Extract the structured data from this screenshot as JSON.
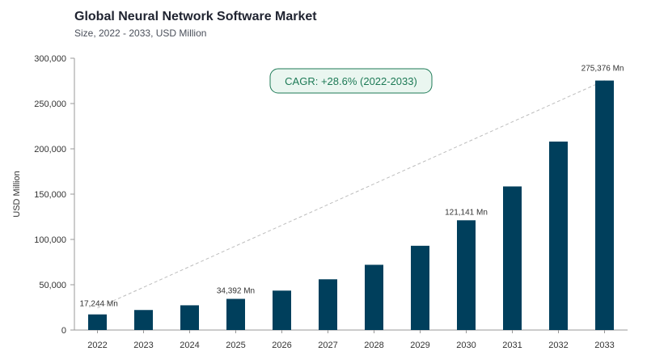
{
  "chart_data": {
    "type": "bar",
    "title": "Global Neural Network Software Market",
    "subtitle": "Size, 2022 - 2033, USD Million",
    "ylabel": "USD Million",
    "xlabel": "",
    "categories": [
      "2022",
      "2023",
      "2024",
      "2025",
      "2026",
      "2027",
      "2028",
      "2029",
      "2030",
      "2031",
      "2032",
      "2033"
    ],
    "values": [
      17244,
      22100,
      27300,
      34392,
      43500,
      56000,
      72000,
      93000,
      121141,
      158500,
      208000,
      275376
    ],
    "ylim": [
      0,
      300000
    ],
    "yticks": [
      0,
      50000,
      100000,
      150000,
      200000,
      250000,
      300000
    ],
    "ytick_labels": [
      "0",
      "50,000",
      "100,000",
      "150,000",
      "200,000",
      "250,000",
      "300,000"
    ],
    "data_labels": [
      {
        "index": 0,
        "text": "17,244 Mn"
      },
      {
        "index": 3,
        "text": "34,392 Mn"
      },
      {
        "index": 8,
        "text": "121,141 Mn"
      },
      {
        "index": 11,
        "text": "275,376 Mn"
      }
    ],
    "annotation": "CAGR: +28.6% (2022-2033)",
    "trend_line": {
      "from_index": 0,
      "to_index": 11
    },
    "bar_color": "#003f5c",
    "trend_color": "#bdbdbd",
    "annotation_color": "#1d7a56",
    "annotation_fill": "#eaf6f0",
    "grid": false
  }
}
